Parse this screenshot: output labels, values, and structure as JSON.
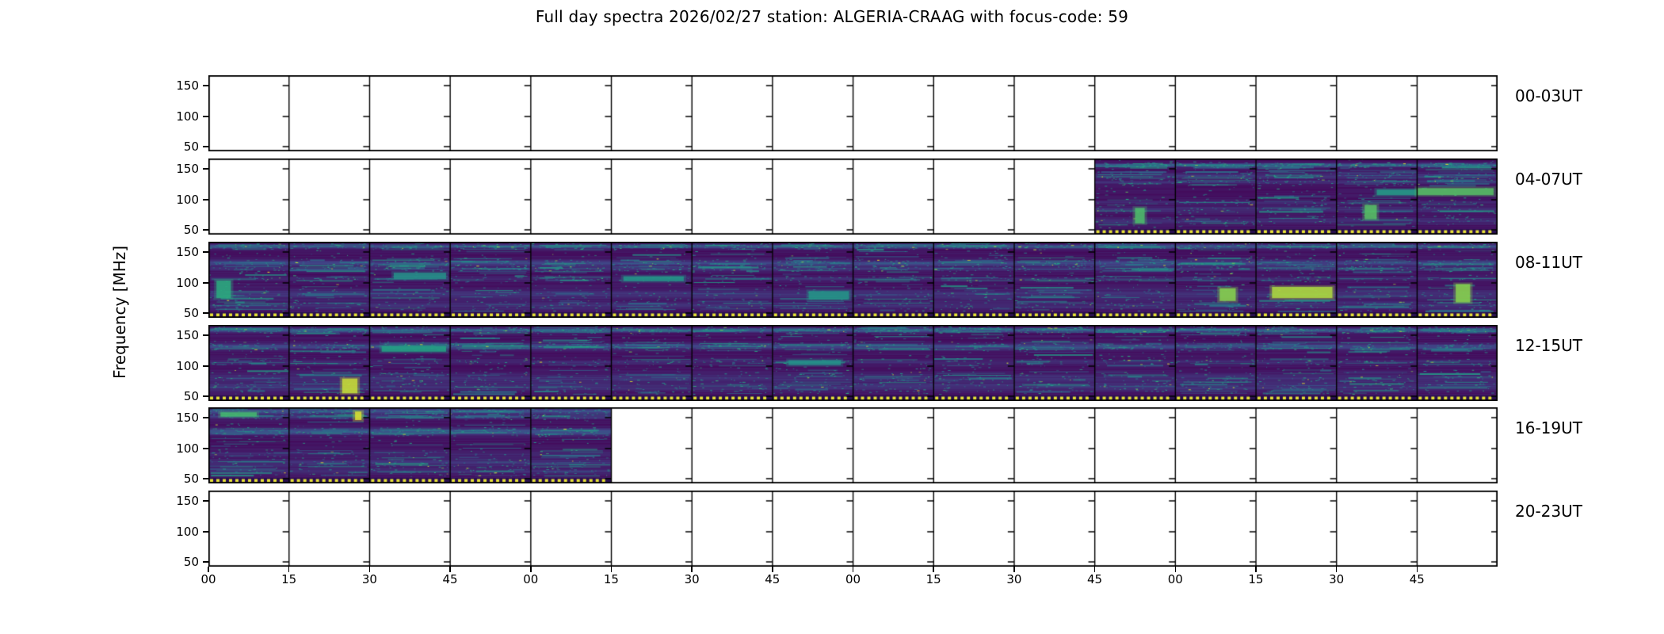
{
  "title": "Full day spectra 2026/02/27 station: ALGERIA-CRAAG with focus-code: 59",
  "y_axis_label": "Frequency [MHz]",
  "freq_ticks": [
    "150",
    "100",
    "50"
  ],
  "time_ticks": [
    "00",
    "15",
    "30",
    "45",
    "00",
    "15",
    "30",
    "45",
    "00",
    "15",
    "30",
    "45",
    "00",
    "15",
    "30",
    "45"
  ],
  "rows": [
    {
      "label": "00-03UT",
      "filled_segments": []
    },
    {
      "label": "04-07UT",
      "filled_segments": [
        11,
        12,
        13,
        14,
        15
      ]
    },
    {
      "label": "08-11UT",
      "filled_segments": [
        0,
        1,
        2,
        3,
        4,
        5,
        6,
        7,
        8,
        9,
        10,
        11,
        12,
        13,
        14,
        15
      ]
    },
    {
      "label": "12-15UT",
      "filled_segments": [
        0,
        1,
        2,
        3,
        4,
        5,
        6,
        7,
        8,
        9,
        10,
        11,
        12,
        13,
        14,
        15
      ]
    },
    {
      "label": "16-19UT",
      "filled_segments": [
        0,
        1,
        2,
        3,
        4
      ]
    },
    {
      "label": "20-23UT",
      "filled_segments": []
    }
  ],
  "colors": {
    "background": "#ffffff",
    "axis": "#000000",
    "marker_yellow": "#e8e337",
    "marker_dark": "#2a1050",
    "viridis_stops": [
      "#440154",
      "#414487",
      "#2a788e",
      "#22a884",
      "#7ad151",
      "#fde725"
    ]
  },
  "chart_data": {
    "type": "heatmap",
    "title": "Full day spectra 2026/02/27 station: ALGERIA-CRAAG with focus-code: 59",
    "ylabel": "Frequency [MHz]",
    "y_ticks_mhz": [
      50,
      100,
      150
    ],
    "ylim_mhz": [
      43,
      167
    ],
    "x_tick_labels_minutes": [
      "00",
      "15",
      "30",
      "45"
    ],
    "hours_per_row": 4,
    "segment_minutes": 15,
    "segments_per_row": 16,
    "colormap": "viridis",
    "legend_position": "none",
    "grid": "segment dividers every 15 minutes",
    "rows": [
      {
        "time_range": "00-03UT",
        "has_data": false,
        "data_start": null,
        "data_end": null
      },
      {
        "time_range": "04-07UT",
        "has_data": true,
        "data_start": "06:45",
        "data_end": "08:00"
      },
      {
        "time_range": "08-11UT",
        "has_data": true,
        "data_start": "08:00",
        "data_end": "12:00"
      },
      {
        "time_range": "12-15UT",
        "has_data": true,
        "data_start": "12:00",
        "data_end": "16:00"
      },
      {
        "time_range": "16-19UT",
        "has_data": true,
        "data_start": "16:00",
        "data_end": "17:15"
      },
      {
        "time_range": "20-23UT",
        "has_data": false,
        "data_start": null,
        "data_end": null
      }
    ],
    "texture_bands": {
      "1": [
        {
          "y": 0.09,
          "s": 1.05,
          "w": 0.018
        },
        {
          "y": 0.24,
          "s": 0.45,
          "w": 0.03
        },
        {
          "y": 0.33,
          "s": 0.35,
          "w": 0.02
        },
        {
          "y": 0.62,
          "s": 0.3,
          "w": 0.02
        },
        {
          "y": 0.72,
          "s": 0.35,
          "w": 0.03
        },
        {
          "y": 0.88,
          "s": 0.35,
          "w": 0.03
        }
      ],
      "2": [
        {
          "y": 0.06,
          "s": 0.9,
          "w": 0.02
        },
        {
          "y": 0.3,
          "s": 0.65,
          "w": 0.03
        },
        {
          "y": 0.38,
          "s": 0.4,
          "w": 0.02
        },
        {
          "y": 0.52,
          "s": 0.3,
          "w": 0.02
        },
        {
          "y": 0.74,
          "s": 0.4,
          "w": 0.05
        },
        {
          "y": 0.9,
          "s": 0.35,
          "w": 0.04
        }
      ],
      "3": [
        {
          "y": 0.07,
          "s": 0.95,
          "w": 0.02
        },
        {
          "y": 0.3,
          "s": 0.7,
          "w": 0.03
        },
        {
          "y": 0.52,
          "s": 0.3,
          "w": 0.025
        },
        {
          "y": 0.75,
          "s": 0.35,
          "w": 0.05
        },
        {
          "y": 0.88,
          "s": 0.4,
          "w": 0.04
        }
      ],
      "4": [
        {
          "y": 0.05,
          "s": 0.85,
          "w": 0.025
        },
        {
          "y": 0.13,
          "s": 0.55,
          "w": 0.02
        },
        {
          "y": 0.34,
          "s": 0.95,
          "w": 0.03
        },
        {
          "y": 0.65,
          "s": 0.25,
          "w": 0.03
        },
        {
          "y": 0.78,
          "s": 0.4,
          "w": 0.04
        },
        {
          "y": 0.9,
          "s": 0.35,
          "w": 0.03
        }
      ]
    },
    "features": [
      {
        "row": 1,
        "seg": 11,
        "x0": 0.5,
        "x1": 0.62,
        "y0": 0.7,
        "y1": 0.92,
        "t": 0.7
      },
      {
        "row": 1,
        "seg": 14,
        "x0": 0.35,
        "x1": 0.5,
        "y0": 0.66,
        "y1": 0.86,
        "t": 0.72
      },
      {
        "row": 1,
        "seg": 14,
        "x0": 0.5,
        "x1": 1.0,
        "y0": 0.44,
        "y1": 0.52,
        "t": 0.55
      },
      {
        "row": 1,
        "seg": 15,
        "x0": 0.0,
        "x1": 0.95,
        "y0": 0.42,
        "y1": 0.52,
        "t": 0.72
      },
      {
        "row": 2,
        "seg": 0,
        "x0": 0.1,
        "x1": 0.28,
        "y0": 0.55,
        "y1": 0.8,
        "t": 0.62
      },
      {
        "row": 2,
        "seg": 2,
        "x0": 0.3,
        "x1": 0.95,
        "y0": 0.44,
        "y1": 0.53,
        "t": 0.5
      },
      {
        "row": 2,
        "seg": 5,
        "x0": 0.15,
        "x1": 0.9,
        "y0": 0.49,
        "y1": 0.56,
        "t": 0.52
      },
      {
        "row": 2,
        "seg": 7,
        "x0": 0.45,
        "x1": 0.95,
        "y0": 0.7,
        "y1": 0.82,
        "t": 0.52
      },
      {
        "row": 2,
        "seg": 12,
        "x0": 0.55,
        "x1": 0.75,
        "y0": 0.66,
        "y1": 0.84,
        "t": 0.82
      },
      {
        "row": 2,
        "seg": 13,
        "x0": 0.2,
        "x1": 0.95,
        "y0": 0.64,
        "y1": 0.8,
        "t": 0.88
      },
      {
        "row": 2,
        "seg": 15,
        "x0": 0.48,
        "x1": 0.66,
        "y0": 0.6,
        "y1": 0.86,
        "t": 0.82
      },
      {
        "row": 3,
        "seg": 1,
        "x0": 0.66,
        "x1": 0.85,
        "y0": 0.76,
        "y1": 0.97,
        "t": 0.92
      },
      {
        "row": 3,
        "seg": 2,
        "x0": 0.15,
        "x1": 0.95,
        "y0": 0.3,
        "y1": 0.38,
        "t": 0.58
      },
      {
        "row": 3,
        "seg": 7,
        "x0": 0.2,
        "x1": 0.85,
        "y0": 0.5,
        "y1": 0.57,
        "t": 0.5
      },
      {
        "row": 4,
        "seg": 0,
        "x0": 0.15,
        "x1": 0.6,
        "y0": 0.07,
        "y1": 0.13,
        "t": 0.68
      },
      {
        "row": 4,
        "seg": 1,
        "x0": 0.82,
        "x1": 0.9,
        "y0": 0.06,
        "y1": 0.18,
        "t": 0.95
      }
    ]
  }
}
